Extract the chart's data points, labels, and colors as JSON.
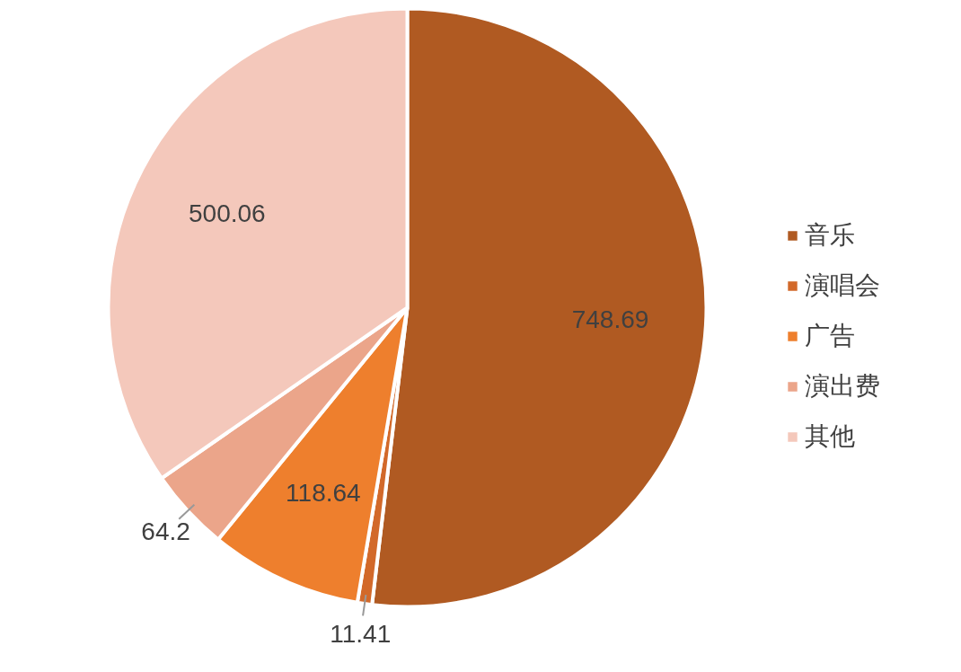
{
  "chart_data": {
    "type": "pie",
    "categories": [
      "音乐",
      "演唱会",
      "广告",
      "演出费",
      "其他"
    ],
    "values": [
      748.69,
      11.41,
      118.64,
      64.2,
      500.06
    ],
    "colors": [
      "#b05a22",
      "#d2692a",
      "#ee7f2d",
      "#eba58a",
      "#f4c8bb"
    ],
    "data_labels": true,
    "legend": "right"
  }
}
